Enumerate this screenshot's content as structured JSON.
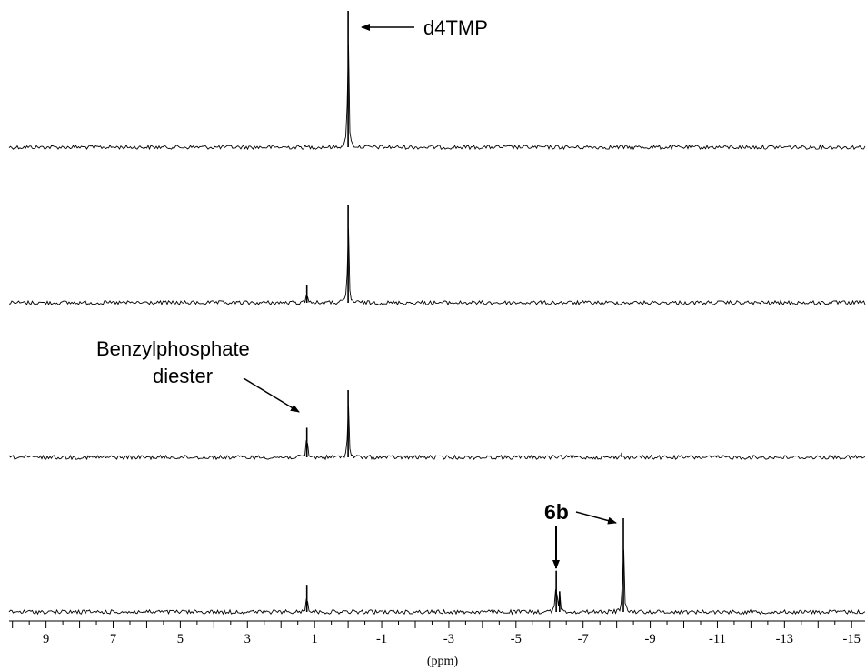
{
  "chart_data": {
    "type": "line",
    "title": "",
    "xlabel": "(ppm)",
    "ylabel": "",
    "xlim": [
      10.1,
      -15.4
    ],
    "x_reversed": true,
    "grid": false,
    "ticks": {
      "labels": [
        "9",
        "7",
        "5",
        "3",
        "1",
        "-1",
        "-3",
        "-5",
        "-7",
        "-9",
        "-11",
        "-13",
        "-15"
      ],
      "values": [
        9,
        7,
        5,
        3,
        1,
        -1,
        -3,
        -5,
        -7,
        -9,
        -11,
        -13,
        -15
      ],
      "minor_step": 0.5
    },
    "series": [
      {
        "peaks": [
          {
            "ppm": 0.0,
            "height": 1.0
          }
        ]
      },
      {
        "peaks": [
          {
            "ppm": 0.0,
            "height": 1.0
          },
          {
            "ppm": 1.23,
            "height": 0.18
          }
        ]
      },
      {
        "peaks": [
          {
            "ppm": 0.0,
            "height": 1.0
          },
          {
            "ppm": 1.23,
            "height": 0.44
          },
          {
            "ppm": -8.15,
            "height": 0.07
          }
        ]
      },
      {
        "peaks": [
          {
            "ppm": 1.23,
            "height": 0.29
          },
          {
            "ppm": -6.2,
            "height": 0.44
          },
          {
            "ppm": -6.3,
            "height": 0.22
          },
          {
            "ppm": -8.2,
            "height": 1.0
          }
        ]
      }
    ],
    "annotations": {
      "d4tmp": "d4TMP",
      "benzyl_line1": "Benzylphosphate",
      "benzyl_line2": "diester",
      "compound": "6b"
    }
  }
}
